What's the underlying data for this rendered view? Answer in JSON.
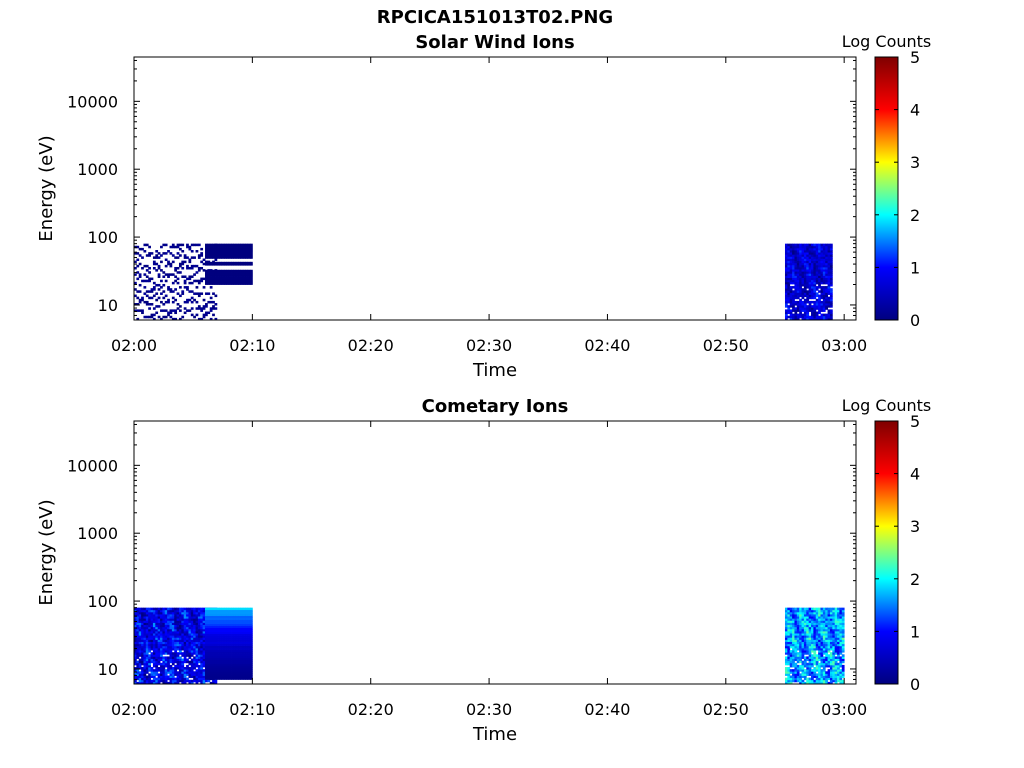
{
  "figure": {
    "title": "RPCICA151013T02.PNG"
  },
  "colormap": {
    "name": "jet",
    "stops": [
      "#00007f",
      "#0000ff",
      "#00ffff",
      "#ffff00",
      "#ff0000",
      "#7f0000"
    ]
  },
  "chart_data": [
    {
      "type": "heatmap",
      "title": "Solar Wind Ions",
      "xlabel": "Time",
      "ylabel": "Energy (eV)",
      "xticks": [
        "02:00",
        "02:10",
        "02:20",
        "02:30",
        "02:40",
        "02:50",
        "03:00"
      ],
      "xlim": [
        "02:00",
        "03:01"
      ],
      "yscale": "log",
      "yticks": [
        10,
        100,
        1000,
        10000
      ],
      "ylim": [
        6,
        45000
      ],
      "colorbar": {
        "label": "Log Counts",
        "ticks": [
          0,
          1,
          2,
          3,
          4,
          5
        ],
        "range": [
          0,
          5
        ]
      },
      "grid": false,
      "data_blocks": [
        {
          "t_start": "02:00",
          "t_end": "02:07",
          "e_min": 6,
          "e_max": 80,
          "log_counts": [
            0,
            0.2
          ],
          "pattern": "sparse"
        },
        {
          "t_start": "02:06",
          "t_end": "02:10",
          "e_min": 20,
          "e_max": 80,
          "log_counts": [
            0,
            0.1
          ],
          "pattern": "bands"
        },
        {
          "t_start": "02:55",
          "t_end": "02:59",
          "e_min": 6,
          "e_max": 80,
          "log_counts": [
            0,
            1.3
          ],
          "pattern": "dense"
        }
      ]
    },
    {
      "type": "heatmap",
      "title": "Cometary Ions",
      "xlabel": "Time",
      "ylabel": "Energy (eV)",
      "xticks": [
        "02:00",
        "02:10",
        "02:20",
        "02:30",
        "02:40",
        "02:50",
        "03:00"
      ],
      "xlim": [
        "02:00",
        "03:01"
      ],
      "yscale": "log",
      "yticks": [
        10,
        100,
        1000,
        10000
      ],
      "ylim": [
        6,
        45000
      ],
      "colorbar": {
        "label": "Log Counts",
        "ticks": [
          0,
          1,
          2,
          3,
          4,
          5
        ],
        "range": [
          0,
          5
        ]
      },
      "grid": false,
      "data_blocks": [
        {
          "t_start": "02:00",
          "t_end": "02:07",
          "e_min": 6,
          "e_max": 80,
          "log_counts": [
            0,
            1.6
          ],
          "pattern": "dense"
        },
        {
          "t_start": "02:06",
          "t_end": "02:10",
          "e_min": 7,
          "e_max": 80,
          "log_counts": [
            0.1,
            1.8
          ],
          "pattern": "bands"
        },
        {
          "t_start": "02:55",
          "t_end": "03:00",
          "e_min": 6,
          "e_max": 80,
          "log_counts": [
            0.8,
            2.4
          ],
          "pattern": "dense"
        }
      ]
    }
  ]
}
